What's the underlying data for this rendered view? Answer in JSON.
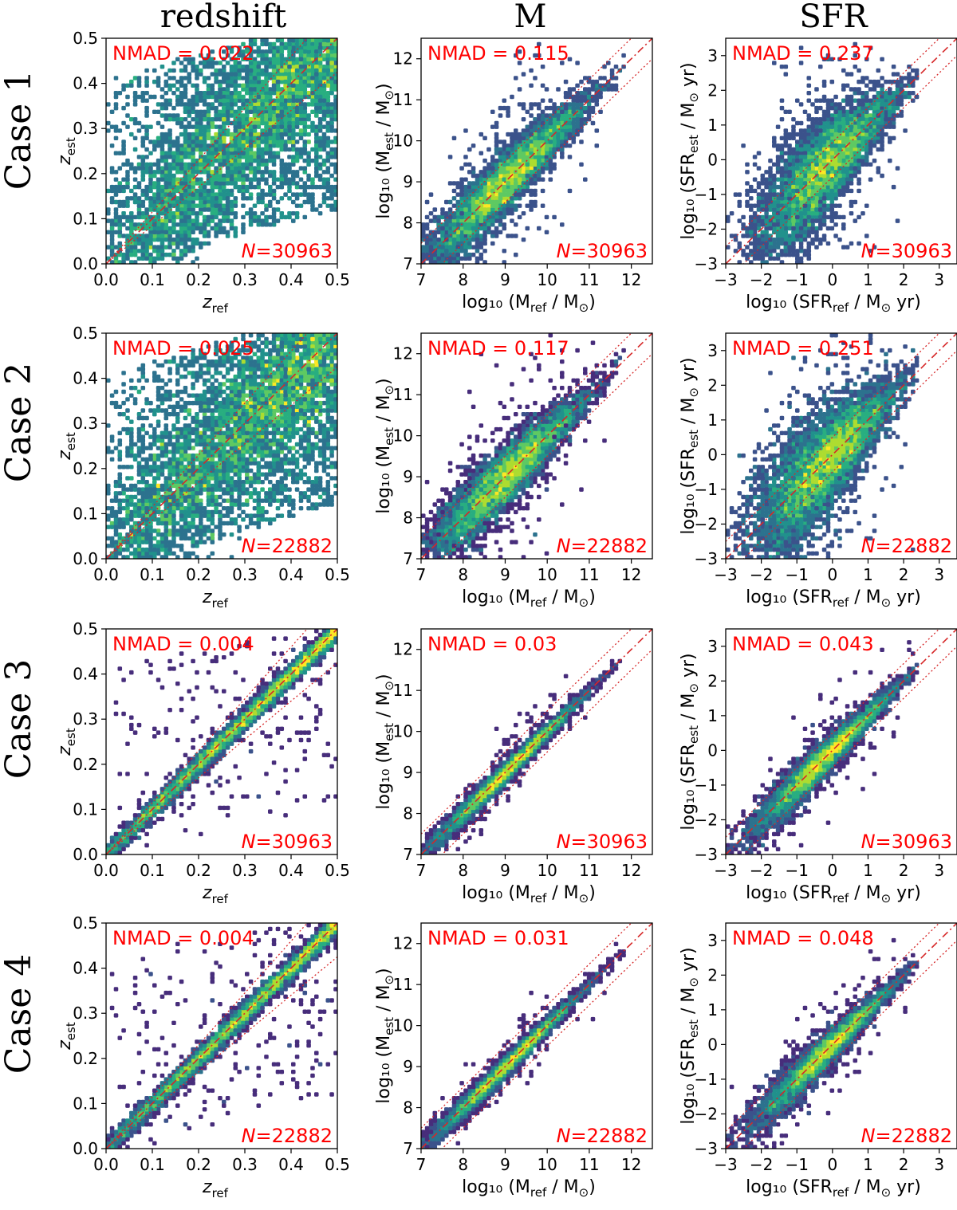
{
  "figure": {
    "column_titles": [
      "redshift",
      "M",
      "SFR"
    ],
    "row_titles": [
      "Case 1",
      "Case 2",
      "Case 3",
      "Case 4"
    ],
    "colors": {
      "reference_line": "#d62728",
      "stat_text": "#ff0000",
      "density_low": "#440154",
      "density_high": "#fde725"
    }
  },
  "chart_data": [
    {
      "type": "scatter",
      "case": "Case 1",
      "quantity": "redshift",
      "title": "redshift",
      "xlabel_main": "z",
      "xlabel_sub": "ref",
      "ylabel_main": "z",
      "ylabel_sub": "est",
      "xlim": [
        0,
        0.5
      ],
      "ylim": [
        0,
        0.5
      ],
      "xticks": [
        "0.0",
        "0.1",
        "0.2",
        "0.3",
        "0.4",
        "0.5"
      ],
      "yticks": [
        "0.0",
        "0.1",
        "0.2",
        "0.3",
        "0.4",
        "0.5"
      ],
      "nmad_text": "NMAD = 0.022",
      "n_prefix": "N",
      "n_value": "=30963",
      "nmad": 0.022,
      "n": 30963,
      "band": 0.15,
      "spread": 0.08,
      "outlier_frac": 0.35,
      "seed": 11
    },
    {
      "type": "scatter",
      "case": "Case 1",
      "quantity": "M",
      "xlabel": "log₁₀ (M_ref / M_⊙)",
      "ylabel": "log₁₀ (M_est / M_⊙)",
      "xlim": [
        7,
        12.5
      ],
      "ylim": [
        7,
        12.5
      ],
      "xticks": [
        "7",
        "8",
        "9",
        "10",
        "11",
        "12"
      ],
      "yticks": [
        "7",
        "8",
        "9",
        "10",
        "11",
        "12"
      ],
      "nmad_text": "NMAD = 0.115",
      "n_prefix": "N",
      "n_value": "=30963",
      "nmad": 0.115,
      "n": 30963,
      "band": 0.5,
      "spread": 0.35,
      "outlier_frac": 0.05,
      "seed": 12
    },
    {
      "type": "scatter",
      "case": "Case 1",
      "quantity": "SFR",
      "xlabel": "log₁₀ (SFR_ref / M_⊙ yr)",
      "ylabel": "log₁₀ (SFR_est / M_⊙ yr)",
      "xlim": [
        -3,
        3.5
      ],
      "ylim": [
        -3,
        3.5
      ],
      "xticks": [
        "−3",
        "−2",
        "−1",
        "0",
        "1",
        "2",
        "3"
      ],
      "yticks": [
        "−3",
        "−2",
        "−1",
        "0",
        "1",
        "2",
        "3"
      ],
      "nmad_text": "NMAD = 0.237",
      "n_prefix": "N",
      "n_value": "=30963",
      "nmad": 0.237,
      "n": 30963,
      "band": 0.5,
      "spread": 0.6,
      "outlier_frac": 0.08,
      "seed": 13
    },
    {
      "type": "scatter",
      "case": "Case 2",
      "quantity": "redshift",
      "xlabel_main": "z",
      "xlabel_sub": "ref",
      "ylabel_main": "z",
      "ylabel_sub": "est",
      "xlim": [
        0,
        0.5
      ],
      "ylim": [
        0,
        0.5
      ],
      "xticks": [
        "0.0",
        "0.1",
        "0.2",
        "0.3",
        "0.4",
        "0.5"
      ],
      "yticks": [
        "0.0",
        "0.1",
        "0.2",
        "0.3",
        "0.4",
        "0.5"
      ],
      "nmad_text": "NMAD = 0.025",
      "n_prefix": "N",
      "n_value": "=22882",
      "nmad": 0.025,
      "n": 22882,
      "band": 0.15,
      "spread": 0.085,
      "outlier_frac": 0.35,
      "seed": 21
    },
    {
      "type": "scatter",
      "case": "Case 2",
      "quantity": "M",
      "xlabel": "log₁₀ (M_ref / M_⊙)",
      "ylabel": "log₁₀ (M_est / M_⊙)",
      "xlim": [
        7,
        12.5
      ],
      "ylim": [
        7,
        12.5
      ],
      "xticks": [
        "7",
        "8",
        "9",
        "10",
        "11",
        "12"
      ],
      "yticks": [
        "7",
        "8",
        "9",
        "10",
        "11",
        "12"
      ],
      "nmad_text": "NMAD = 0.117",
      "n_prefix": "N",
      "n_value": "=22882",
      "nmad": 0.117,
      "n": 22882,
      "band": 0.5,
      "spread": 0.36,
      "outlier_frac": 0.05,
      "seed": 22
    },
    {
      "type": "scatter",
      "case": "Case 2",
      "quantity": "SFR",
      "xlabel": "log₁₀ (SFR_ref / M_⊙ yr)",
      "ylabel": "log₁₀ (SFR_est / M_⊙ yr)",
      "xlim": [
        -3,
        3.5
      ],
      "ylim": [
        -3,
        3.5
      ],
      "xticks": [
        "−3",
        "−2",
        "−1",
        "0",
        "1",
        "2",
        "3"
      ],
      "yticks": [
        "−3",
        "−2",
        "−1",
        "0",
        "1",
        "2",
        "3"
      ],
      "nmad_text": "NMAD = 0.251",
      "n_prefix": "N",
      "n_value": "=22882",
      "nmad": 0.251,
      "n": 22882,
      "band": 0.5,
      "spread": 0.62,
      "outlier_frac": 0.08,
      "seed": 23
    },
    {
      "type": "scatter",
      "case": "Case 3",
      "quantity": "redshift",
      "xlabel_main": "z",
      "xlabel_sub": "ref",
      "ylabel_main": "z",
      "ylabel_sub": "est",
      "xlim": [
        0,
        0.5
      ],
      "ylim": [
        0,
        0.5
      ],
      "xticks": [
        "0.0",
        "0.1",
        "0.2",
        "0.3",
        "0.4",
        "0.5"
      ],
      "yticks": [
        "0.0",
        "0.1",
        "0.2",
        "0.3",
        "0.4",
        "0.5"
      ],
      "nmad_text": "NMAD = 0.004",
      "n_prefix": "N",
      "n_value": "=30963",
      "nmad": 0.004,
      "n": 30963,
      "band": 0.15,
      "spread": 0.012,
      "outlier_frac": 0.04,
      "seed": 31
    },
    {
      "type": "scatter",
      "case": "Case 3",
      "quantity": "M",
      "xlabel": "log₁₀ (M_ref / M_⊙)",
      "ylabel": "log₁₀ (M_est / M_⊙)",
      "xlim": [
        7,
        12.5
      ],
      "ylim": [
        7,
        12.5
      ],
      "xticks": [
        "7",
        "8",
        "9",
        "10",
        "11",
        "12"
      ],
      "yticks": [
        "7",
        "8",
        "9",
        "10",
        "11",
        "12"
      ],
      "nmad_text": "NMAD = 0.03",
      "n_prefix": "N",
      "n_value": "=30963",
      "nmad": 0.03,
      "n": 30963,
      "band": 0.5,
      "spread": 0.12,
      "outlier_frac": 0.03,
      "seed": 32
    },
    {
      "type": "scatter",
      "case": "Case 3",
      "quantity": "SFR",
      "xlabel": "log₁₀ (SFR_ref / M_⊙ yr)",
      "ylabel": "log₁₀ (SFR_est / M_⊙ yr)",
      "xlim": [
        -3,
        3.5
      ],
      "ylim": [
        -3,
        3.5
      ],
      "xticks": [
        "−3",
        "−2",
        "−1",
        "0",
        "1",
        "2",
        "3"
      ],
      "yticks": [
        "−3",
        "−2",
        "−1",
        "0",
        "1",
        "2",
        "3"
      ],
      "nmad_text": "NMAD = 0.043",
      "n_prefix": "N",
      "n_value": "=30963",
      "nmad": 0.043,
      "n": 30963,
      "band": 0.5,
      "spread": 0.22,
      "outlier_frac": 0.03,
      "seed": 33
    },
    {
      "type": "scatter",
      "case": "Case 4",
      "quantity": "redshift",
      "xlabel_main": "z",
      "xlabel_sub": "ref",
      "ylabel_main": "z",
      "ylabel_sub": "est",
      "xlim": [
        0,
        0.5
      ],
      "ylim": [
        0,
        0.5
      ],
      "xticks": [
        "0.0",
        "0.1",
        "0.2",
        "0.3",
        "0.4",
        "0.5"
      ],
      "yticks": [
        "0.0",
        "0.1",
        "0.2",
        "0.3",
        "0.4",
        "0.5"
      ],
      "nmad_text": "NMAD = 0.004",
      "n_prefix": "N",
      "n_value": "=22882",
      "nmad": 0.004,
      "n": 22882,
      "band": 0.15,
      "spread": 0.012,
      "outlier_frac": 0.05,
      "seed": 41
    },
    {
      "type": "scatter",
      "case": "Case 4",
      "quantity": "M",
      "xlabel": "log₁₀ (M_ref / M_⊙)",
      "ylabel": "log₁₀ (M_est / M_⊙)",
      "xlim": [
        7,
        12.5
      ],
      "ylim": [
        7,
        12.5
      ],
      "xticks": [
        "7",
        "8",
        "9",
        "10",
        "11",
        "12"
      ],
      "yticks": [
        "7",
        "8",
        "9",
        "10",
        "11",
        "12"
      ],
      "nmad_text": "NMAD = 0.031",
      "n_prefix": "N",
      "n_value": "=22882",
      "nmad": 0.031,
      "n": 22882,
      "band": 0.5,
      "spread": 0.12,
      "outlier_frac": 0.03,
      "seed": 42
    },
    {
      "type": "scatter",
      "case": "Case 4",
      "quantity": "SFR",
      "xlabel": "log₁₀ (SFR_ref / M_⊙ yr)",
      "ylabel": "log₁₀ (SFR_est / M_⊙ yr)",
      "xlim": [
        -3,
        3.5
      ],
      "ylim": [
        -3,
        3.5
      ],
      "xticks": [
        "−3",
        "−2",
        "−1",
        "0",
        "1",
        "2",
        "3"
      ],
      "yticks": [
        "−3",
        "−2",
        "−1",
        "0",
        "1",
        "2",
        "3"
      ],
      "nmad_text": "NMAD = 0.048",
      "n_prefix": "N",
      "n_value": "=22882",
      "nmad": 0.048,
      "n": 22882,
      "band": 0.5,
      "spread": 0.22,
      "outlier_frac": 0.03,
      "seed": 43
    }
  ]
}
